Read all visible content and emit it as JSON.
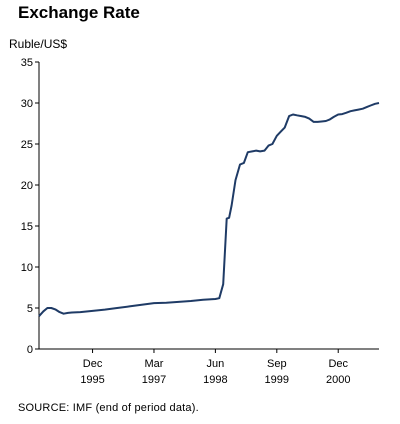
{
  "chart_data": {
    "type": "line",
    "title": "Exchange Rate",
    "ylabel": "Ruble/US$",
    "ylim": [
      0,
      35
    ],
    "yticks": [
      0,
      5,
      10,
      15,
      20,
      25,
      30,
      35
    ],
    "xticks": [
      {
        "month": "Dec",
        "year": "1995",
        "x": 1995.92
      },
      {
        "month": "Mar",
        "year": "1997",
        "x": 1997.17
      },
      {
        "month": "Jun",
        "year": "1998",
        "x": 1998.42
      },
      {
        "month": "Sep",
        "year": "1999",
        "x": 1999.67
      },
      {
        "month": "Dec",
        "year": "2000",
        "x": 2000.92
      }
    ],
    "xlim": [
      1994.83,
      2001.75
    ],
    "grid": false,
    "series": [
      {
        "color": "#1f3b66",
        "points": [
          [
            1994.83,
            4.0
          ],
          [
            1994.92,
            4.6
          ],
          [
            1995.0,
            5.0
          ],
          [
            1995.08,
            5.0
          ],
          [
            1995.17,
            4.8
          ],
          [
            1995.25,
            4.5
          ],
          [
            1995.33,
            4.3
          ],
          [
            1995.42,
            4.4
          ],
          [
            1995.5,
            4.45
          ],
          [
            1995.67,
            4.5
          ],
          [
            1995.92,
            4.65
          ],
          [
            1996.17,
            4.8
          ],
          [
            1996.42,
            5.0
          ],
          [
            1996.67,
            5.2
          ],
          [
            1996.92,
            5.4
          ],
          [
            1997.17,
            5.6
          ],
          [
            1997.42,
            5.65
          ],
          [
            1997.67,
            5.75
          ],
          [
            1997.92,
            5.85
          ],
          [
            1998.17,
            6.0
          ],
          [
            1998.42,
            6.1
          ],
          [
            1998.5,
            6.2
          ],
          [
            1998.58,
            7.9
          ],
          [
            1998.65,
            15.9
          ],
          [
            1998.7,
            16.0
          ],
          [
            1998.75,
            17.5
          ],
          [
            1998.83,
            20.6
          ],
          [
            1998.92,
            22.5
          ],
          [
            1999.0,
            22.7
          ],
          [
            1999.08,
            24.0
          ],
          [
            1999.17,
            24.1
          ],
          [
            1999.25,
            24.2
          ],
          [
            1999.33,
            24.1
          ],
          [
            1999.42,
            24.2
          ],
          [
            1999.5,
            24.8
          ],
          [
            1999.58,
            25.0
          ],
          [
            1999.67,
            26.0
          ],
          [
            1999.75,
            26.5
          ],
          [
            1999.83,
            27.0
          ],
          [
            1999.92,
            28.4
          ],
          [
            2000.0,
            28.6
          ],
          [
            2000.08,
            28.5
          ],
          [
            2000.17,
            28.4
          ],
          [
            2000.25,
            28.3
          ],
          [
            2000.33,
            28.1
          ],
          [
            2000.42,
            27.7
          ],
          [
            2000.5,
            27.7
          ],
          [
            2000.58,
            27.75
          ],
          [
            2000.67,
            27.8
          ],
          [
            2000.75,
            28.0
          ],
          [
            2000.83,
            28.3
          ],
          [
            2000.92,
            28.6
          ],
          [
            2001.0,
            28.65
          ],
          [
            2001.08,
            28.8
          ],
          [
            2001.17,
            29.0
          ],
          [
            2001.25,
            29.1
          ],
          [
            2001.33,
            29.2
          ],
          [
            2001.42,
            29.3
          ],
          [
            2001.5,
            29.5
          ],
          [
            2001.58,
            29.7
          ],
          [
            2001.67,
            29.9
          ],
          [
            2001.75,
            30.0
          ]
        ]
      }
    ]
  },
  "source": "SOURCE: IMF (end of period data)."
}
